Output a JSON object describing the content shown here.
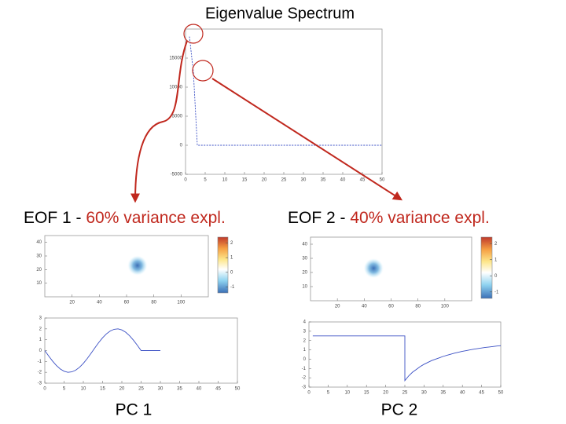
{
  "chart_data": [
    {
      "type": "line",
      "title": "Eigenvalue Spectrum",
      "x": [
        1,
        2,
        3,
        4,
        5,
        6,
        7,
        8,
        9,
        10,
        11,
        12,
        13,
        14,
        15,
        16,
        17,
        18,
        19,
        20,
        21,
        22,
        23,
        24,
        25,
        26,
        27,
        28,
        29,
        30,
        31,
        32,
        33,
        34,
        35,
        36,
        37,
        38,
        39,
        40,
        41,
        42,
        43,
        44,
        45,
        46,
        47,
        48,
        49,
        50
      ],
      "series": [
        {
          "color": "#3a4fc4",
          "values": [
            18700,
            12600,
            0,
            0,
            0,
            0,
            0,
            0,
            0,
            0,
            0,
            0,
            0,
            0,
            0,
            0,
            0,
            0,
            0,
            0,
            0,
            0,
            0,
            0,
            0,
            0,
            0,
            0,
            0,
            0,
            0,
            0,
            0,
            0,
            0,
            0,
            0,
            0,
            0,
            0,
            0,
            0,
            0,
            0,
            0,
            0,
            0,
            0,
            0,
            0
          ]
        }
      ],
      "xlim": [
        0,
        50
      ],
      "xticks": [
        0,
        5,
        10,
        15,
        20,
        25,
        30,
        35,
        40,
        45,
        50
      ],
      "ylim": [
        -5000,
        20000
      ],
      "yticks": [
        -5000,
        0,
        5000,
        10000,
        15000
      ]
    },
    {
      "type": "heatmap",
      "title": "EOF 1 - ",
      "title_highlight": "60% variance expl.",
      "xlim": [
        0,
        120
      ],
      "xticks": [
        20,
        40,
        60,
        80,
        100
      ],
      "ylim": [
        0,
        45
      ],
      "yticks": [
        10,
        20,
        30,
        40
      ],
      "peak_x": 68,
      "peak_y": 23,
      "peak_value": -1.4,
      "clim": [
        -1.4,
        2.4
      ],
      "cticks": [
        -1,
        0,
        1,
        2
      ]
    },
    {
      "type": "heatmap",
      "title": "EOF 2 - ",
      "title_highlight": "40% variance expl.",
      "xlim": [
        0,
        120
      ],
      "xticks": [
        20,
        40,
        60,
        80,
        100
      ],
      "ylim": [
        0,
        45
      ],
      "yticks": [
        10,
        20,
        30,
        40
      ],
      "peak_x": 47,
      "peak_y": 23,
      "peak_value": -1.4,
      "clim": [
        -1.4,
        2.4
      ],
      "cticks": [
        -1,
        0,
        1,
        2
      ]
    },
    {
      "type": "line",
      "caption": "PC 1",
      "x": [
        0,
        1,
        2,
        3,
        4,
        5,
        6,
        7,
        8,
        9,
        10,
        11,
        12,
        13,
        14,
        15,
        16,
        17,
        18,
        19,
        20,
        21,
        22,
        23,
        24,
        25,
        26,
        27,
        28,
        29,
        30
      ],
      "series": [
        {
          "color": "#3a4fc4",
          "values": [
            0,
            -0.5,
            -0.96,
            -1.37,
            -1.69,
            -1.9,
            -2,
            -1.96,
            -1.81,
            -1.54,
            -1.18,
            -0.74,
            -0.25,
            0.25,
            0.74,
            1.18,
            1.54,
            1.81,
            1.96,
            2,
            1.9,
            1.69,
            1.37,
            0.96,
            0.5,
            0,
            0,
            0,
            0,
            0,
            0
          ]
        }
      ],
      "xlim": [
        0,
        50
      ],
      "xticks": [
        0,
        5,
        10,
        15,
        20,
        25,
        30,
        35,
        40,
        45,
        50
      ],
      "ylim": [
        -3,
        3
      ],
      "yticks": [
        -3,
        -2,
        -1,
        0,
        1,
        2,
        3
      ]
    },
    {
      "type": "line",
      "caption": "PC 2",
      "x": [
        1,
        25,
        25,
        26,
        27,
        28,
        29,
        30,
        31,
        32,
        33,
        34,
        35,
        36,
        37,
        38,
        39,
        40,
        41,
        42,
        43,
        44,
        45,
        46,
        47,
        48,
        49,
        50
      ],
      "series": [
        {
          "color": "#3a4fc4",
          "values": [
            2.5,
            2.5,
            -2.3,
            -1.8,
            -1.4,
            -1.1,
            -0.8,
            -0.55,
            -0.35,
            -0.15,
            0,
            0.15,
            0.3,
            0.42,
            0.54,
            0.65,
            0.75,
            0.84,
            0.92,
            1,
            1.07,
            1.14,
            1.2,
            1.26,
            1.31,
            1.36,
            1.41,
            1.45
          ]
        }
      ],
      "xlim": [
        0,
        50
      ],
      "xticks": [
        0,
        5,
        10,
        15,
        20,
        25,
        30,
        35,
        40,
        45,
        50
      ],
      "ylim": [
        -3,
        4
      ],
      "yticks": [
        -3,
        -2,
        -1,
        0,
        1,
        2,
        3,
        4
      ]
    }
  ]
}
